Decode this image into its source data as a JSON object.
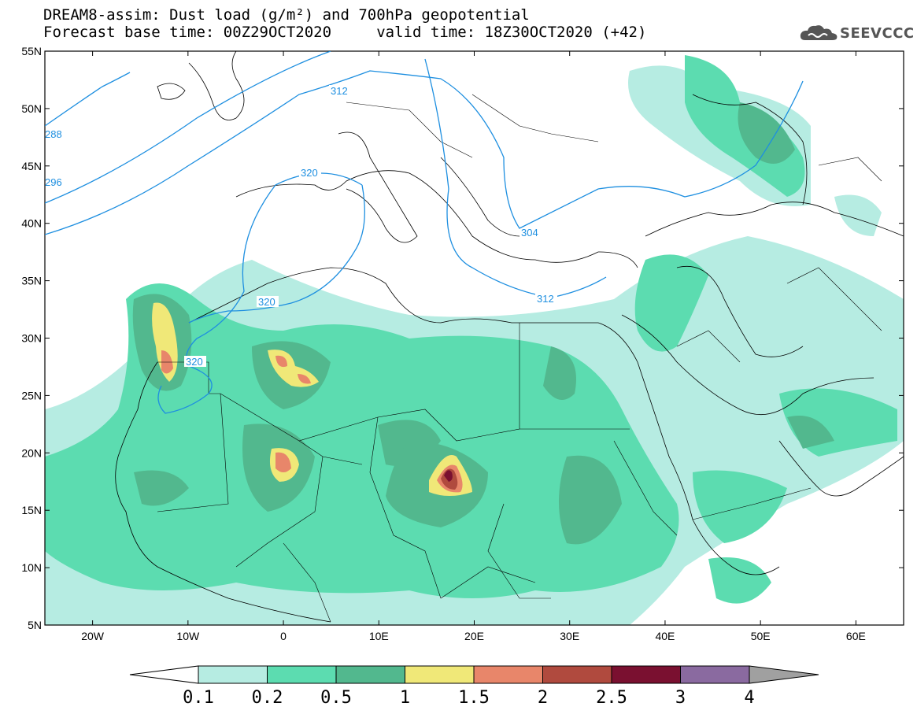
{
  "header": {
    "line1": "DREAM8-assim: Dust load (g/m²) and 700hPa geopotential",
    "line2": "Forecast base time: 00Z29OCT2020     valid time: 18Z30OCT2020 (+42)"
  },
  "logo": {
    "text": "SEEVCCC",
    "icon": "cloud-icon"
  },
  "map": {
    "lat_ticks": [
      "55N",
      "50N",
      "45N",
      "40N",
      "35N",
      "30N",
      "25N",
      "20N",
      "15N",
      "10N",
      "5N"
    ],
    "lon_ticks": [
      "20W",
      "10W",
      "0",
      "10E",
      "20E",
      "30E",
      "40E",
      "50E",
      "60E"
    ],
    "lat_range": [
      5,
      55
    ],
    "lon_range": [
      -25,
      65
    ],
    "contour_labels": [
      "312",
      "288",
      "296",
      "320",
      "320",
      "320",
      "304",
      "312"
    ]
  },
  "colorbar": {
    "labels": [
      "0.1",
      "0.2",
      "0.5",
      "1",
      "1.5",
      "2",
      "2.5",
      "3",
      "4"
    ],
    "colors": [
      "#b6ece2",
      "#5cdcb0",
      "#52b88e",
      "#f0e878",
      "#e8866a",
      "#b04a3e",
      "#7a1030",
      "#8a6aa0"
    ],
    "under_color": "#ffffff",
    "over_color": "#a0a0a0"
  },
  "colors": {
    "contour": "#1e8fe0",
    "border": "#000000"
  }
}
